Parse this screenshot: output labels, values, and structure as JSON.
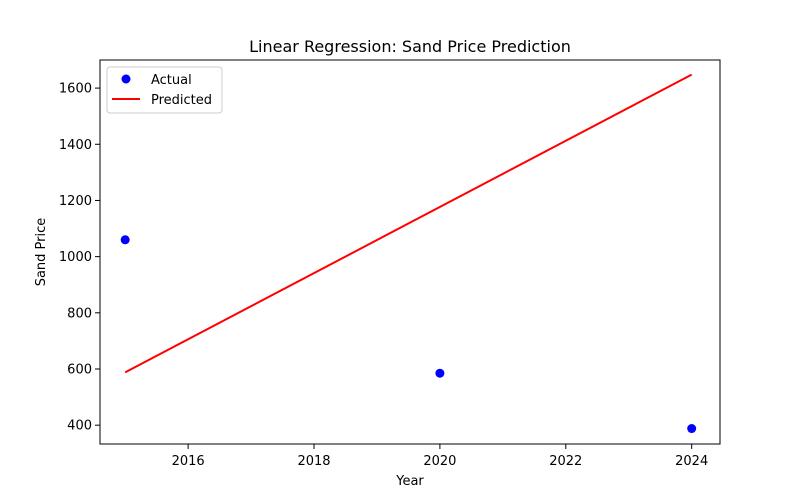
{
  "chart_data": {
    "type": "scatter",
    "title": "Linear Regression: Sand Price Prediction",
    "xlabel": "Year",
    "ylabel": "Sand Price",
    "xlim": [
      2014.6,
      2024.45
    ],
    "ylim": [
      333,
      1700
    ],
    "xticks": [
      2016,
      2018,
      2020,
      2022,
      2024
    ],
    "yticks": [
      400,
      600,
      800,
      1000,
      1200,
      1400,
      1600
    ],
    "grid": false,
    "legend_position": "top-left",
    "series": [
      {
        "name": "Actual",
        "kind": "scatter",
        "color": "#0000ff",
        "points": [
          {
            "x": 2015,
            "y": 1060
          },
          {
            "x": 2020,
            "y": 585
          },
          {
            "x": 2024,
            "y": 388
          }
        ]
      },
      {
        "name": "Predicted",
        "kind": "line",
        "color": "#ff0000",
        "points": [
          {
            "x": 2015,
            "y": 588
          },
          {
            "x": 2024,
            "y": 1648
          }
        ]
      }
    ]
  }
}
